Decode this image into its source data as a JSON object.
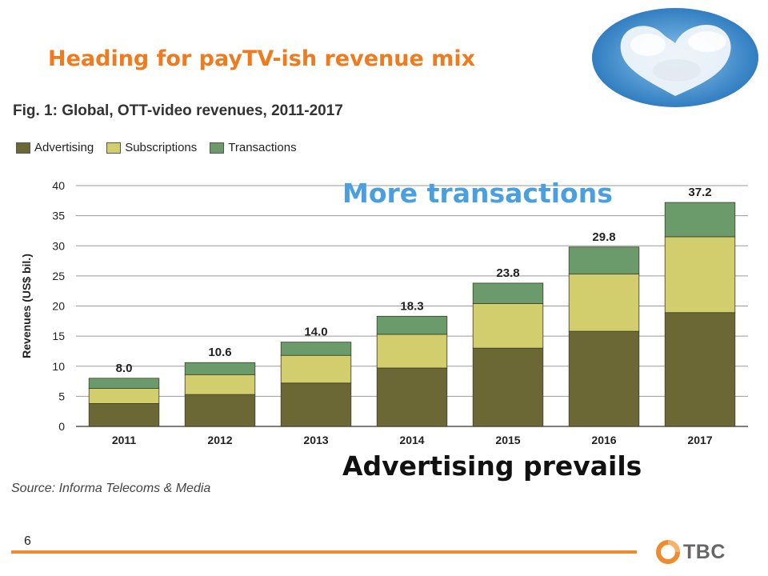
{
  "slide": {
    "title": "Heading for payTV-ish revenue mix",
    "callout_top": "More transactions",
    "callout_bottom": "Advertising prevails",
    "page_number": "6",
    "logo_text": "TBC",
    "accent_color": "#f07a1e"
  },
  "chart_data": {
    "type": "bar",
    "stacked": true,
    "title": "Fig. 1: Global, OTT-video revenues, 2011-2017",
    "source": "Source: Informa Telecoms & Media",
    "ylabel": "Revenues (US$ bil.)",
    "xlabel": "",
    "ylim": [
      0,
      40
    ],
    "yticks": [
      0,
      5,
      10,
      15,
      20,
      25,
      30,
      35,
      40
    ],
    "grid": true,
    "legend_position": "top-left",
    "categories": [
      "2011",
      "2012",
      "2013",
      "2014",
      "2015",
      "2016",
      "2017"
    ],
    "totals": [
      "8.0",
      "10.6",
      "14.0",
      "18.3",
      "23.8",
      "29.8",
      "37.2"
    ],
    "series": [
      {
        "name": "Advertising",
        "color": "#6b6836",
        "values": [
          3.8,
          5.3,
          7.2,
          9.7,
          13.0,
          15.8,
          18.9
        ]
      },
      {
        "name": "Subscriptions",
        "color": "#d2cd6d",
        "values": [
          2.5,
          3.3,
          4.6,
          5.6,
          7.4,
          9.5,
          12.6
        ]
      },
      {
        "name": "Transactions",
        "color": "#6b9b6b",
        "values": [
          1.7,
          2.0,
          2.2,
          3.0,
          3.4,
          4.5,
          5.7
        ]
      }
    ]
  }
}
